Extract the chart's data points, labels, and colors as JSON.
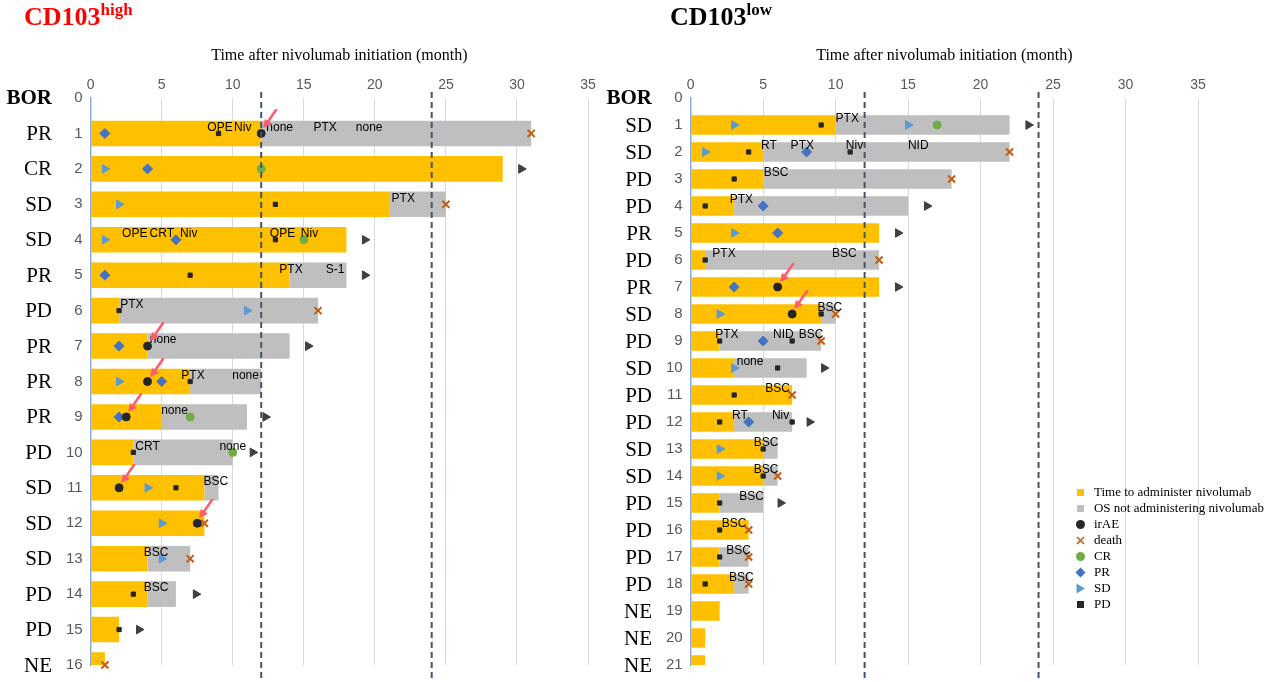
{
  "chart_data": [
    {
      "type": "bar",
      "title": "CD103$^{high}$",
      "xlabel": "Time after nivolumab initiation (month)",
      "orientation": "horizontal",
      "stacked": true,
      "xlim": [
        0,
        35
      ],
      "xticks": [
        0,
        5,
        10,
        15,
        20,
        25,
        30,
        35
      ],
      "grid": "x",
      "legend": false,
      "categories": [
        "0",
        "1",
        "2",
        "3",
        "4",
        "5",
        "6",
        "7",
        "8",
        "9",
        "10",
        "11",
        "12",
        "13",
        "14",
        "15",
        "16"
      ],
      "series": [
        {
          "type": "bar",
          "color": "#ffc000",
          "values": [
            null,
            12,
            29,
            21,
            18,
            14,
            2,
            4,
            7,
            5,
            3,
            8,
            8,
            4,
            4,
            2,
            1
          ]
        },
        {
          "type": "bar",
          "color": "#bfbfbf",
          "values": [
            null,
            19,
            null,
            4,
            null,
            4,
            14,
            10,
            5,
            6,
            7,
            1,
            null,
            3,
            2,
            null,
            null
          ]
        },
        {
          "type": "scatter",
          "marker": "circle",
          "color": "#262626",
          "x": [
            "1",
            "7",
            "8",
            "9",
            "11",
            "12"
          ],
          "values": [
            12,
            4,
            4,
            2.5,
            2,
            7.5
          ]
        },
        {
          "type": "scatter",
          "marker": "cross",
          "color": "#c55a11",
          "x": [
            "1",
            "3",
            "6",
            "12",
            "13",
            "16"
          ],
          "values": [
            31,
            25,
            16,
            8,
            7,
            1
          ]
        },
        {
          "type": "scatter",
          "marker": "circle",
          "color": "#70ad47",
          "x": [
            "2",
            "4",
            "9",
            "10"
          ],
          "values": [
            12,
            15,
            7,
            10
          ]
        },
        {
          "type": "scatter",
          "marker": "diamond",
          "color": "#4472c4",
          "x": [
            "1",
            "2",
            "4",
            "5",
            "7",
            "8",
            "9"
          ],
          "values": [
            1,
            4,
            6,
            1,
            2,
            5,
            2
          ]
        },
        {
          "type": "scatter",
          "marker": "triangle",
          "color": "#5b9bd5",
          "x": [
            "2",
            "3",
            "4",
            "6",
            "8",
            "11",
            "12",
            "13"
          ],
          "values": [
            1,
            2,
            1,
            11,
            2,
            4,
            5,
            5
          ]
        },
        {
          "type": "scatter",
          "marker": "square",
          "color": "#262626",
          "x": [
            "1",
            "3",
            "4",
            "5",
            "6",
            "8",
            "10",
            "11",
            "14",
            "15"
          ],
          "values": [
            9,
            13,
            13,
            7,
            2,
            7,
            3,
            6,
            3,
            2
          ]
        },
        {
          "type": "scatter",
          "marker": "triangle",
          "color": "#404040",
          "x": [
            "2",
            "4",
            "5",
            "7",
            "9",
            "10",
            "14",
            "15"
          ],
          "values": [
            30.3,
            19.3,
            19.3,
            15.3,
            12.3,
            11.4,
            7.4,
            3.4
          ]
        }
      ],
      "ref_lines": [
        {
          "axis": "x",
          "value": 12,
          "color": "#44546a",
          "line_style": "dashed"
        },
        {
          "axis": "x",
          "value": 24,
          "color": "#44546a",
          "line_style": "dashed"
        }
      ],
      "annotations": [
        "BOR",
        "PR",
        "CR",
        "SD",
        "SD",
        "PR",
        "PD",
        "PR",
        "PR",
        "PR",
        "PD",
        "SD",
        "SD",
        "SD",
        "PD",
        "PD",
        "NE",
        {
          "text": "OPE",
          "x": 9.1,
          "y": "1"
        },
        {
          "text": "Niv",
          "x": 10.7,
          "y": "1"
        },
        {
          "text": "none",
          "x": 13.3,
          "y": "1"
        },
        {
          "text": "PTX",
          "x": 16.5,
          "y": "1"
        },
        {
          "text": "none",
          "x": 19.6,
          "y": "1"
        },
        {
          "text": "PTX",
          "x": 22,
          "y": "3"
        },
        {
          "text": "OPE",
          "x": 3.1,
          "y": "4"
        },
        {
          "text": "CRT",
          "x": 5,
          "y": "4"
        },
        {
          "text": "Niv",
          "x": 6.9,
          "y": "4"
        },
        {
          "text": "OPE",
          "x": 13.5,
          "y": "4"
        },
        {
          "text": "Niv",
          "x": 15.4,
          "y": "4"
        },
        {
          "text": "PTX",
          "x": 14.1,
          "y": "5"
        },
        {
          "text": "S-1",
          "x": 17.2,
          "y": "5"
        },
        {
          "text": "PTX",
          "x": 2.9,
          "y": "6"
        },
        {
          "text": "none",
          "x": 5.1,
          "y": "7"
        },
        {
          "text": "PTX",
          "x": 7.2,
          "y": "8"
        },
        {
          "text": "none",
          "x": 10.9,
          "y": "8"
        },
        {
          "text": "none",
          "x": 5.9,
          "y": "9"
        },
        {
          "text": "CRT",
          "x": 4,
          "y": "10"
        },
        {
          "text": "none",
          "x": 10,
          "y": "10"
        },
        {
          "text": "BSC",
          "x": 8.8,
          "y": "11"
        },
        {
          "text": "BSC",
          "x": 4.6,
          "y": "13"
        },
        {
          "text": "BSC",
          "x": 4.6,
          "y": "14"
        }
      ]
    },
    {
      "type": "bar",
      "title": "CD103$^{low}$",
      "xlabel": "Time after nivolumab initiation (month)",
      "orientation": "horizontal",
      "stacked": true,
      "xlim": [
        0,
        35
      ],
      "xticks": [
        0,
        5,
        10,
        15,
        20,
        25,
        30,
        35
      ],
      "grid": "x",
      "legend": "bottom right",
      "categories": [
        "0",
        "1",
        "2",
        "3",
        "4",
        "5",
        "6",
        "7",
        "8",
        "9",
        "10",
        "11",
        "12",
        "13",
        "14",
        "15",
        "16",
        "17",
        "18",
        "19",
        "20",
        "21"
      ],
      "series": [
        {
          "type": "bar",
          "name": "Time to administer nivolumab",
          "color": "#ffc000",
          "values": [
            null,
            10,
            5,
            5,
            3,
            13,
            1,
            13,
            9,
            2,
            3,
            7,
            3,
            5,
            5,
            2,
            4,
            2,
            3,
            2,
            1,
            1
          ]
        },
        {
          "type": "bar",
          "name": "OS not administering nivolumab",
          "color": "#bfbfbf",
          "values": [
            null,
            12,
            17,
            13,
            12,
            null,
            12,
            null,
            1,
            7,
            5,
            null,
            4,
            1,
            1,
            3,
            null,
            2,
            1,
            null,
            null,
            null
          ]
        },
        {
          "type": "scatter",
          "name": "irAE",
          "marker": "circle",
          "color": "#262626",
          "x": [
            "7",
            "8"
          ],
          "values": [
            6,
            7
          ]
        },
        {
          "type": "scatter",
          "name": "death",
          "marker": "cross",
          "color": "#c55a11",
          "x": [
            "2",
            "3",
            "6",
            "8",
            "9",
            "11",
            "14",
            "16",
            "17",
            "18"
          ],
          "values": [
            22,
            18,
            13,
            10,
            9,
            7,
            6,
            4,
            4,
            4
          ]
        },
        {
          "type": "scatter",
          "name": "CR",
          "marker": "circle",
          "color": "#70ad47",
          "x": [
            "1"
          ],
          "values": [
            17
          ]
        },
        {
          "type": "scatter",
          "name": "PR",
          "marker": "diamond",
          "color": "#4472c4",
          "x": [
            "2",
            "4",
            "5",
            "7",
            "9",
            "12"
          ],
          "values": [
            8,
            5,
            6,
            3,
            5,
            4
          ]
        },
        {
          "type": "scatter",
          "name": "SD",
          "marker": "triangle",
          "color": "#5b9bd5",
          "x": [
            "1",
            "1",
            "2",
            "5",
            "8",
            "10",
            "13",
            "14"
          ],
          "values": [
            3,
            15,
            1,
            3,
            2,
            3,
            2,
            2
          ]
        },
        {
          "type": "scatter",
          "name": "PD",
          "marker": "square",
          "color": "#262626",
          "x": [
            "1",
            "2",
            "2",
            "3",
            "4",
            "6",
            "8",
            "9",
            "9",
            "10",
            "11",
            "12",
            "12",
            "13",
            "14",
            "15",
            "16",
            "17",
            "18"
          ],
          "values": [
            9,
            4,
            11,
            3,
            1,
            1,
            9,
            2,
            7,
            6,
            3,
            2,
            7,
            5,
            5,
            2,
            2,
            2,
            1
          ]
        },
        {
          "type": "scatter",
          "marker": "triangle",
          "color": "#404040",
          "x": [
            "1",
            "4",
            "5",
            "7",
            "10",
            "12",
            "15"
          ],
          "values": [
            23.3,
            16.3,
            14.3,
            14.3,
            9.2,
            8.2,
            6.2
          ]
        }
      ],
      "ref_lines": [
        {
          "axis": "x",
          "value": 12,
          "color": "#44546a",
          "line_style": "dashed"
        },
        {
          "axis": "x",
          "value": 24,
          "color": "#44546a",
          "line_style": "dashed"
        }
      ],
      "annotations": [
        "BOR",
        "SD",
        "SD",
        "PD",
        "PD",
        "PR",
        "PD",
        "PR",
        "SD",
        "PD",
        "SD",
        "PD",
        "PD",
        "SD",
        "SD",
        "PD",
        "PD",
        "PD",
        "PD",
        "NE",
        "NE",
        "NE",
        {
          "text": "PTX",
          "x": 10.8,
          "y": "1"
        },
        {
          "text": "RT",
          "x": 5.4,
          "y": "2"
        },
        {
          "text": "PTX",
          "x": 7.7,
          "y": "2"
        },
        {
          "text": "Niv",
          "x": 11.3,
          "y": "2"
        },
        {
          "text": "NID",
          "x": 15.7,
          "y": "2"
        },
        {
          "text": "BSC",
          "x": 5.9,
          "y": "3"
        },
        {
          "text": "PTX",
          "x": 3.5,
          "y": "4"
        },
        {
          "text": "PTX",
          "x": 2.3,
          "y": "6"
        },
        {
          "text": "BSC",
          "x": 10.6,
          "y": "6"
        },
        {
          "text": "BSC",
          "x": 9.6,
          "y": "8"
        },
        {
          "text": "PTX",
          "x": 2.5,
          "y": "9"
        },
        {
          "text": "NID",
          "x": 6.4,
          "y": "9"
        },
        {
          "text": "BSC",
          "x": 8.3,
          "y": "9"
        },
        {
          "text": "none",
          "x": 4.1,
          "y": "10"
        },
        {
          "text": "BSC",
          "x": 6,
          "y": "11"
        },
        {
          "text": "RT",
          "x": 3.4,
          "y": "12"
        },
        {
          "text": "Niv",
          "x": 6.2,
          "y": "12"
        },
        {
          "text": "BSC",
          "x": 5.2,
          "y": "13"
        },
        {
          "text": "BSC",
          "x": 5.2,
          "y": "14"
        },
        {
          "text": "BSC",
          "x": 4.2,
          "y": "15"
        },
        {
          "text": "BSC",
          "x": 3,
          "y": "16"
        },
        {
          "text": "BSC",
          "x": 3.3,
          "y": "17"
        },
        {
          "text": "BSC",
          "x": 3.5,
          "y": "18"
        }
      ]
    }
  ]
}
